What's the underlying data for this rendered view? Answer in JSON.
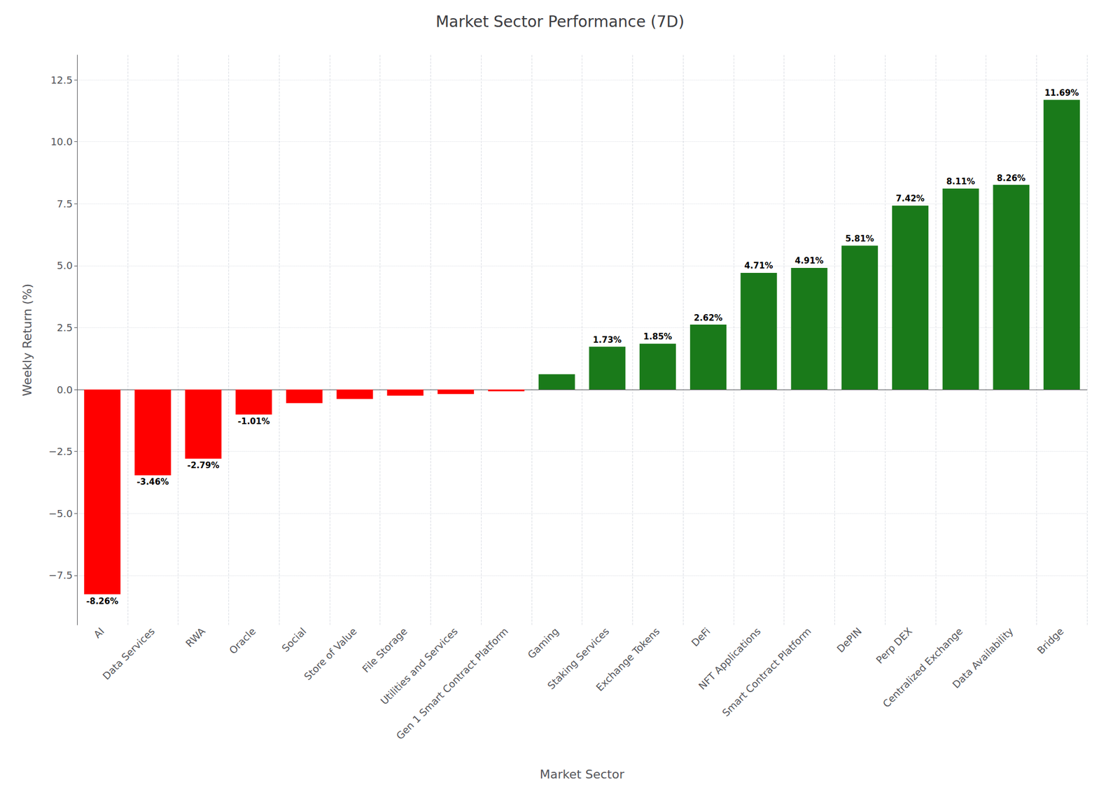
{
  "chart_data": {
    "type": "bar",
    "title": "Market Sector Performance (7D)",
    "xlabel": "Market Sector",
    "ylabel": "Weekly Return (%)",
    "categories": [
      "AI",
      "Data Services",
      "RWA",
      "Oracle",
      "Social",
      "Store of Value",
      "File Storage",
      "Utilities and Services",
      "Gen 1 Smart Contract Platform",
      "Gaming",
      "Staking Services",
      "Exchange Tokens",
      "DeFi",
      "NFT Applications",
      "Smart Contract Platform",
      "DePIN",
      "Perp DEX",
      "Centralized Exchange",
      "Data Availability",
      "Bridge"
    ],
    "values": [
      -8.26,
      -3.46,
      -2.79,
      -1.01,
      -0.55,
      -0.38,
      -0.25,
      -0.18,
      -0.07,
      0.62,
      1.73,
      1.85,
      2.62,
      4.71,
      4.91,
      5.81,
      7.42,
      8.11,
      8.26,
      11.69
    ],
    "value_labels": [
      "-8.26%",
      "-3.46%",
      "-2.79%",
      "-1.01%",
      null,
      null,
      null,
      null,
      null,
      null,
      "1.73%",
      "1.85%",
      "2.62%",
      "4.71%",
      "4.91%",
      "5.81%",
      "7.42%",
      "8.11%",
      "8.26%",
      "11.69%"
    ],
    "colors": [
      "#ff0000",
      "#ff0000",
      "#ff0000",
      "#ff0000",
      "#ff0000",
      "#ff0000",
      "#ff0000",
      "#ff0000",
      "#ff0000",
      "#1a7a1a",
      "#1a7a1a",
      "#1a7a1a",
      "#1a7a1a",
      "#1a7a1a",
      "#1a7a1a",
      "#1a7a1a",
      "#1a7a1a",
      "#1a7a1a",
      "#1a7a1a",
      "#1a7a1a"
    ],
    "ylim": [
      -9.5,
      13.5
    ],
    "yticks": [
      {
        "value": -7.5,
        "label": "−7.5"
      },
      {
        "value": -5.0,
        "label": "−5.0"
      },
      {
        "value": -2.5,
        "label": "−2.5"
      },
      {
        "value": 0.0,
        "label": "0.0"
      },
      2.5,
      {
        "value": 5.0,
        "label": "5.0"
      },
      7.5,
      {
        "value": 10.0,
        "label": "10.0"
      },
      12.5
    ],
    "grid": true
  }
}
